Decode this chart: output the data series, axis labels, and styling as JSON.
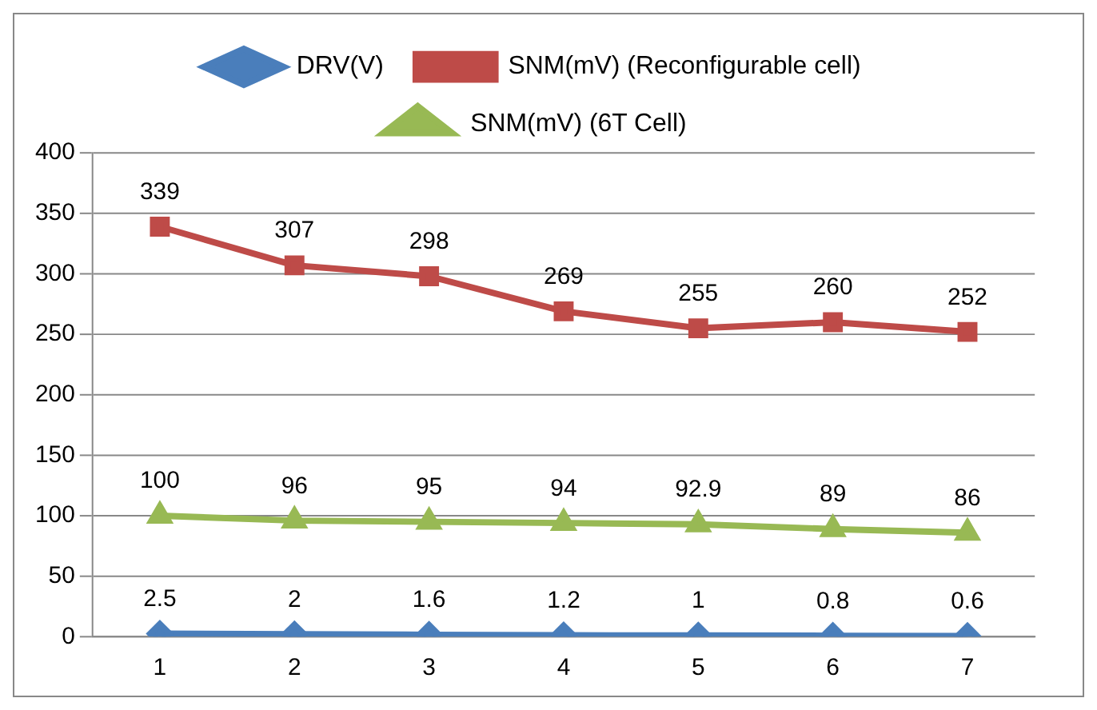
{
  "chart_data": {
    "type": "line",
    "categories": [
      "1",
      "2",
      "3",
      "4",
      "5",
      "6",
      "7"
    ],
    "series": [
      {
        "name": "DRV(V)",
        "color": "#4a7ebb",
        "marker": "diamond",
        "values": [
          2.5,
          2,
          1.6,
          1.2,
          1,
          0.8,
          0.6
        ]
      },
      {
        "name": "SNM(mV) (Reconfigurable cell)",
        "color": "#be4b48",
        "marker": "square",
        "values": [
          339,
          307,
          298,
          269,
          255,
          260,
          252
        ]
      },
      {
        "name": "SNM(mV) (6T Cell)",
        "color": "#98b954",
        "marker": "triangle",
        "values": [
          100,
          96,
          95,
          94,
          92.9,
          89,
          86
        ]
      }
    ],
    "ylim": [
      0,
      400
    ],
    "yticks": [
      0,
      50,
      100,
      150,
      200,
      250,
      300,
      350,
      400
    ],
    "grid": "y",
    "legend": "top",
    "data_labels": true
  }
}
